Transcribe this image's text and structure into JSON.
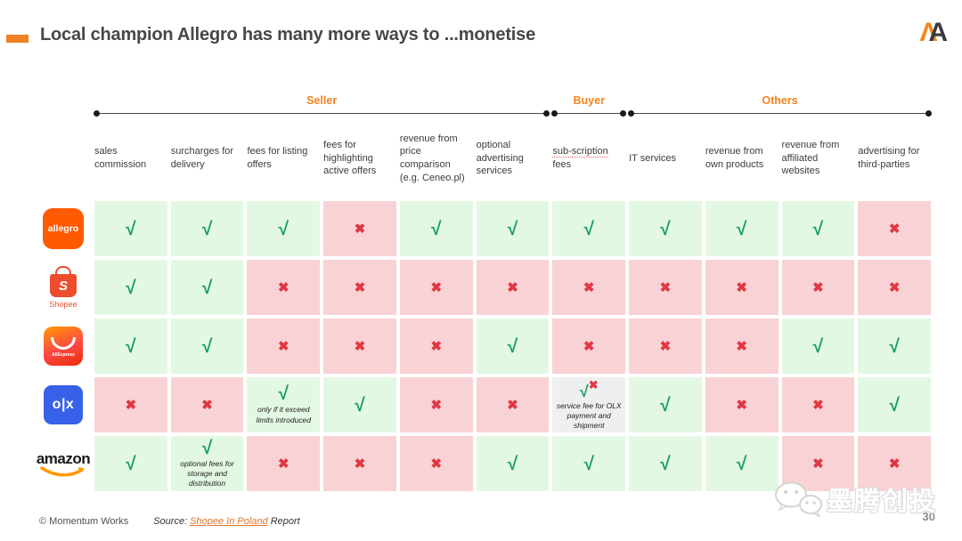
{
  "header": {
    "title": "Local champion Allegro has many more ways to ...monetise",
    "logo_left": "Λ",
    "logo_right": "A"
  },
  "table": {
    "check_glyph": "√",
    "cross_glyph": "✖",
    "groups": [
      {
        "label": "Seller",
        "span": 6
      },
      {
        "label": "Buyer",
        "span": 1
      },
      {
        "label": "Others",
        "span": 4
      }
    ],
    "columns": [
      {
        "label": "sales commission"
      },
      {
        "label": "surcharges for delivery"
      },
      {
        "label": "fees for listing offers"
      },
      {
        "label": "fees for highlighting active offers"
      },
      {
        "label": "revenue from price comparison (e.g. Ceneo.pl)"
      },
      {
        "label": "optional advertising services"
      },
      {
        "label_parts": [
          {
            "text": "sub-scription",
            "underline": true
          },
          {
            "text": " fees"
          }
        ]
      },
      {
        "label": "IT services"
      },
      {
        "label": "revenue from own products"
      },
      {
        "label": "revenue from affiliated websites"
      },
      {
        "label": "advertising for third-parties"
      }
    ],
    "rows": [
      {
        "platform": "Allegro",
        "logo": {
          "type": "allegro",
          "text": "allegro"
        },
        "cells": [
          {
            "mark": "check"
          },
          {
            "mark": "check"
          },
          {
            "mark": "check"
          },
          {
            "mark": "cross"
          },
          {
            "mark": "check"
          },
          {
            "mark": "check"
          },
          {
            "mark": "check"
          },
          {
            "mark": "check"
          },
          {
            "mark": "check"
          },
          {
            "mark": "check"
          },
          {
            "mark": "cross"
          }
        ]
      },
      {
        "platform": "Shopee",
        "logo": {
          "type": "shopee",
          "bag_letter": "S",
          "label": "Shopee"
        },
        "cells": [
          {
            "mark": "check"
          },
          {
            "mark": "check"
          },
          {
            "mark": "cross"
          },
          {
            "mark": "cross"
          },
          {
            "mark": "cross"
          },
          {
            "mark": "cross"
          },
          {
            "mark": "cross"
          },
          {
            "mark": "cross"
          },
          {
            "mark": "cross"
          },
          {
            "mark": "cross"
          },
          {
            "mark": "cross"
          }
        ]
      },
      {
        "platform": "AliExpress",
        "logo": {
          "type": "aliexpress",
          "label": "AliExpress"
        },
        "cells": [
          {
            "mark": "check"
          },
          {
            "mark": "check"
          },
          {
            "mark": "cross"
          },
          {
            "mark": "cross"
          },
          {
            "mark": "cross"
          },
          {
            "mark": "check"
          },
          {
            "mark": "cross"
          },
          {
            "mark": "cross"
          },
          {
            "mark": "cross"
          },
          {
            "mark": "check"
          },
          {
            "mark": "check"
          }
        ]
      },
      {
        "platform": "OLX",
        "logo": {
          "type": "olx",
          "text": "o|x"
        },
        "cells": [
          {
            "mark": "cross"
          },
          {
            "mark": "cross"
          },
          {
            "mark": "check",
            "note": "only if it exceed limits introduced"
          },
          {
            "mark": "check"
          },
          {
            "mark": "cross"
          },
          {
            "mark": "cross"
          },
          {
            "mark": "check-cross",
            "note": "service fee for OLX payment and shipment",
            "bg": "gray"
          },
          {
            "mark": "check"
          },
          {
            "mark": "cross"
          },
          {
            "mark": "cross"
          },
          {
            "mark": "check"
          }
        ]
      },
      {
        "platform": "Amazon",
        "logo": {
          "type": "amazon",
          "text": "amazon"
        },
        "cells": [
          {
            "mark": "check"
          },
          {
            "mark": "check",
            "note": "optional fees for storage and distribution"
          },
          {
            "mark": "cross"
          },
          {
            "mark": "cross"
          },
          {
            "mark": "cross"
          },
          {
            "mark": "check"
          },
          {
            "mark": "check"
          },
          {
            "mark": "check"
          },
          {
            "mark": "check"
          },
          {
            "mark": "cross"
          },
          {
            "mark": "cross"
          }
        ]
      }
    ]
  },
  "footer": {
    "copyright": "© Momentum Works",
    "source_prefix": "Source: ",
    "source_link": "Shopee In Poland",
    "source_suffix": " Report",
    "page_number": "30",
    "watermark_text": "墨腾创投"
  },
  "colors": {
    "accent_orange": "#F5821F",
    "cell_green": "#E3F8E3",
    "cell_pink": "#F9D2D5",
    "cell_gray": "#EFEFEF",
    "check_green": "#149E5F",
    "cross_red": "#E23742"
  }
}
